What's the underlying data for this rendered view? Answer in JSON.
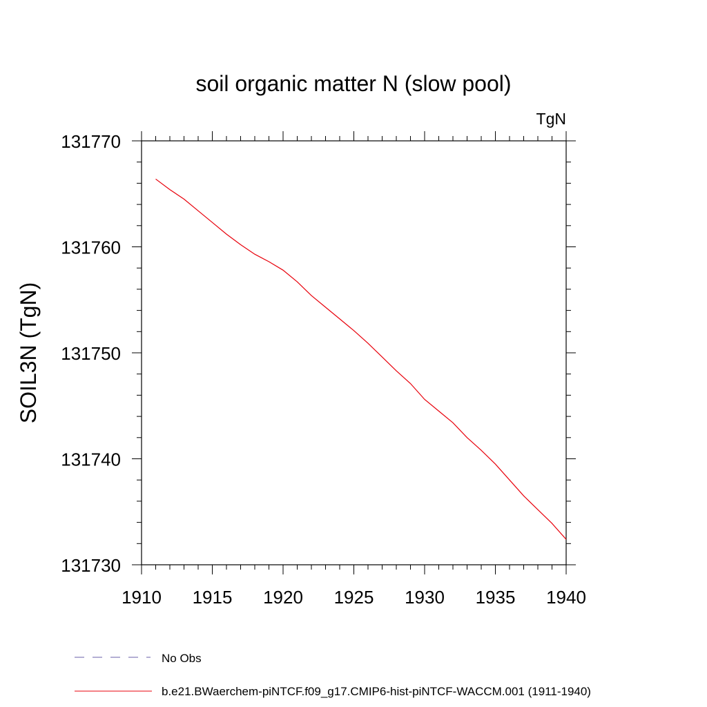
{
  "chart_data": {
    "type": "line",
    "title": "soil organic matter N (slow pool)",
    "units_label": "TgN",
    "ylabel": "SOIL3N  (TgN)",
    "xlabel": "",
    "xlim": [
      1910,
      1940
    ],
    "ylim": [
      131730,
      131770
    ],
    "x_ticks": [
      "1910",
      "1915",
      "1920",
      "1925",
      "1930",
      "1935",
      "1940"
    ],
    "y_ticks": [
      "131730",
      "131740",
      "131750",
      "131760",
      "131770"
    ],
    "grid": false,
    "legend_position": "bottom",
    "series": [
      {
        "name": "b.e21.BWaerchem-piNTCF.f09_g17.CMIP6-hist-piNTCF-WACCM.001 (1911-1940)",
        "color": "#e8000b",
        "style": "solid",
        "x": [
          1911,
          1912,
          1913,
          1914,
          1915,
          1916,
          1917,
          1918,
          1919,
          1920,
          1921,
          1922,
          1923,
          1924,
          1925,
          1926,
          1927,
          1928,
          1929,
          1930,
          1931,
          1932,
          1933,
          1934,
          1935,
          1936,
          1937,
          1938,
          1939,
          1940
        ],
        "values": [
          131766.4,
          131765.4,
          131764.5,
          131763.4,
          131762.3,
          131761.2,
          131760.2,
          131759.3,
          131758.6,
          131757.8,
          131756.7,
          131755.4,
          131754.3,
          131753.2,
          131752.1,
          131750.9,
          131749.6,
          131748.3,
          131747.1,
          131745.6,
          131744.5,
          131743.4,
          131742.0,
          131740.8,
          131739.5,
          131738.0,
          131736.5,
          131735.2,
          131733.9,
          131732.4
        ]
      },
      {
        "name": "No Obs",
        "color": "#6a5fa8",
        "style": "dashed",
        "x": [],
        "values": []
      }
    ]
  }
}
